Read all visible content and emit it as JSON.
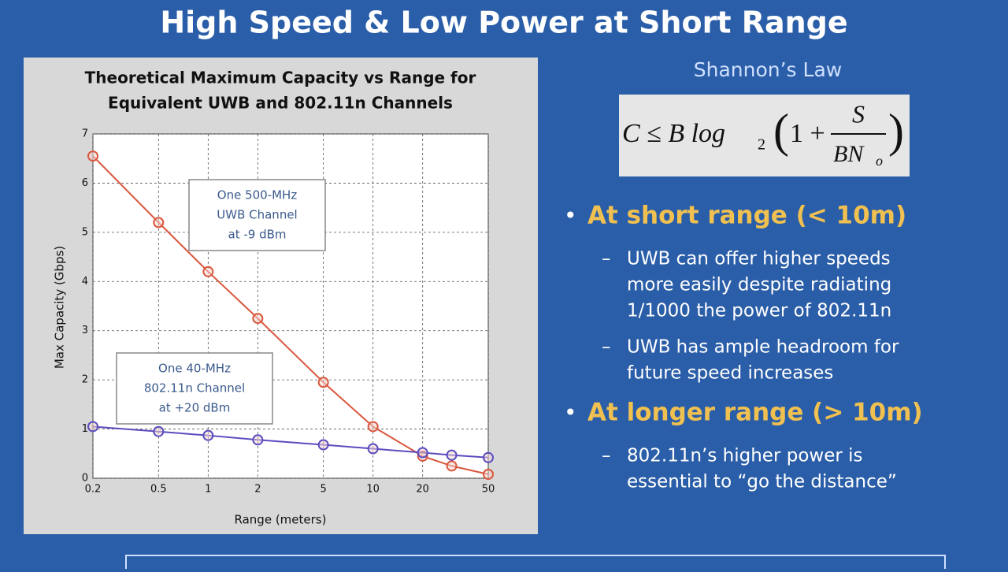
{
  "slide_title": "High Speed & Low Power at Short Range",
  "chart_data": {
    "type": "line",
    "title": [
      "Theoretical Maximum Capacity vs Range for",
      "Equivalent UWB and 802.11n Channels"
    ],
    "x_label": "Range (meters)",
    "y_label": "Max Capacity (Gbps)",
    "xscale": "log",
    "grid": true,
    "x": [
      0.2,
      0.5,
      1,
      2,
      5,
      10,
      20,
      30,
      50
    ],
    "xlim": [
      0.2,
      50
    ],
    "xticks": [
      0.2,
      0.5,
      1,
      2,
      5,
      10,
      20,
      50
    ],
    "ylim": [
      0,
      7
    ],
    "yticks": [
      0,
      1,
      2,
      3,
      4,
      5,
      6,
      7
    ],
    "series": [
      {
        "name": "UWB",
        "color": "#d9573d",
        "values": [
          6.55,
          5.2,
          4.2,
          3.25,
          1.95,
          1.05,
          0.45,
          0.25,
          0.08
        ]
      },
      {
        "name": "802.11n",
        "color": "#5a4cc0",
        "values": [
          1.05,
          0.95,
          0.87,
          0.78,
          0.68,
          0.6,
          0.52,
          0.47,
          0.42
        ]
      }
    ],
    "annotations": [
      [
        "One 500-MHz",
        "UWB Channel",
        "at -9 dBm"
      ],
      [
        "One 40-MHz",
        "802.11n Channel",
        "at +20 dBm"
      ]
    ]
  },
  "law_title": "Shannon’s Law",
  "equation": {
    "lhs": "C  ≤  B  log",
    "base": "2",
    "one": "1 +",
    "num": "S",
    "den": "BN",
    "den_sub": "o"
  },
  "bullets": [
    {
      "heading": "At short range (< 10m)",
      "items": [
        [
          "UWB can offer higher speeds",
          "more easily despite radiating",
          "1/1000 the power of 802.11n"
        ],
        [
          "UWB has ample headroom for",
          "future speed increases"
        ]
      ]
    },
    {
      "heading": "At longer range (> 10m)",
      "items": [
        [
          "802.11n’s higher power is",
          "essential to “go the distance”"
        ]
      ]
    }
  ]
}
